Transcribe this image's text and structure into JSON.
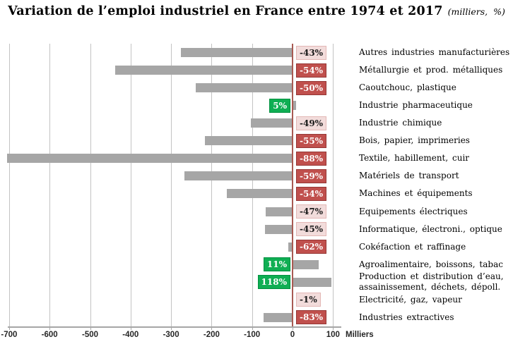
{
  "title": {
    "main": "Variation de l’emploi industriel en France entre 1974 et 2017",
    "unit_note": "(milliers,  %)"
  },
  "axis": {
    "tick_values": [
      -700,
      -600,
      -500,
      -400,
      -300,
      -200,
      -100,
      0,
      100
    ],
    "tick_labels": [
      "-700",
      "-600",
      "-500",
      "-400",
      "-300",
      "-200",
      "-100",
      "0",
      "100"
    ],
    "unit_label": "Milliers",
    "range_thousands": [
      -710,
      120
    ]
  },
  "chart_data": {
    "type": "bar",
    "orientation": "horizontal",
    "title": "Variation de l’emploi industriel en France entre 1974 et 2017",
    "units": "milliers (bar length), % (badge)",
    "xlabel": "Milliers",
    "xlim": [
      -710,
      120
    ],
    "grid": "vertical gridlines every 100",
    "rows": [
      {
        "label": "Autres industries manufacturières",
        "value_thousands": -276,
        "pct": -43,
        "pct_label": "-43%",
        "badge": "mild"
      },
      {
        "label": "Métallurgie et prod. métalliques",
        "value_thousands": -438,
        "pct": -54,
        "pct_label": "-54%",
        "badge": "strong"
      },
      {
        "label": "Caoutchouc, plastique",
        "value_thousands": -239,
        "pct": -50,
        "pct_label": "-50%",
        "badge": "strong"
      },
      {
        "label": "Industrie pharmaceutique",
        "value_thousands": 7,
        "pct": 5,
        "pct_label": "5%",
        "badge": "positive"
      },
      {
        "label": "Industrie chimique",
        "value_thousands": -103,
        "pct": -49,
        "pct_label": "-49%",
        "badge": "mild"
      },
      {
        "label": "Bois, papier, imprimeries",
        "value_thousands": -216,
        "pct": -55,
        "pct_label": "-55%",
        "badge": "strong"
      },
      {
        "label": "Textile, habillement, cuir",
        "value_thousands": -705,
        "pct": -88,
        "pct_label": "-88%",
        "badge": "strong"
      },
      {
        "label": "Matériels de transport",
        "value_thousands": -267,
        "pct": -59,
        "pct_label": "-59%",
        "badge": "strong"
      },
      {
        "label": "Machines et équipements",
        "value_thousands": -162,
        "pct": -54,
        "pct_label": "-54%",
        "badge": "strong"
      },
      {
        "label": "Equipements électriques",
        "value_thousands": -66,
        "pct": -47,
        "pct_label": "-47%",
        "badge": "mild"
      },
      {
        "label": "Informatique, électroni., optique",
        "value_thousands": -68,
        "pct": -45,
        "pct_label": "-45%",
        "badge": "mild"
      },
      {
        "label": "Cokéfaction et raffinage",
        "value_thousands": -10,
        "pct": -62,
        "pct_label": "-62%",
        "badge": "strong"
      },
      {
        "label": "Agroalimentaire, boissons, tabac",
        "value_thousands": 63,
        "pct": 11,
        "pct_label": "11%",
        "badge": "positive"
      },
      {
        "label": "Production et distribution d’eau,\nassainissement, déchets, dépoll.",
        "value_thousands": 95,
        "pct": 118,
        "pct_label": "118%",
        "badge": "positive"
      },
      {
        "label": "Electricité, gaz, vapeur",
        "value_thousands": -2,
        "pct": -1,
        "pct_label": "-1%",
        "badge": "mild"
      },
      {
        "label": "Industries extractives",
        "value_thousands": -72,
        "pct": -83,
        "pct_label": "-83%",
        "badge": "strong"
      }
    ]
  },
  "colors": {
    "bar": "#a6a6a6",
    "grid": "#c3c3c3",
    "axis_line": "#a6a6a6",
    "zero_line": "#a85a52",
    "badge_strong_bg": "#c0504d",
    "badge_strong_border": "#953735",
    "badge_strong_text": "#ffffff",
    "badge_mild_bg": "#f2dcdb",
    "badge_mild_border": "#e3b7b5",
    "badge_mild_text": "#1a1a1a",
    "badge_positive_bg": "#0fae53",
    "badge_positive_border": "#00913f",
    "badge_positive_text": "#ffffff"
  }
}
